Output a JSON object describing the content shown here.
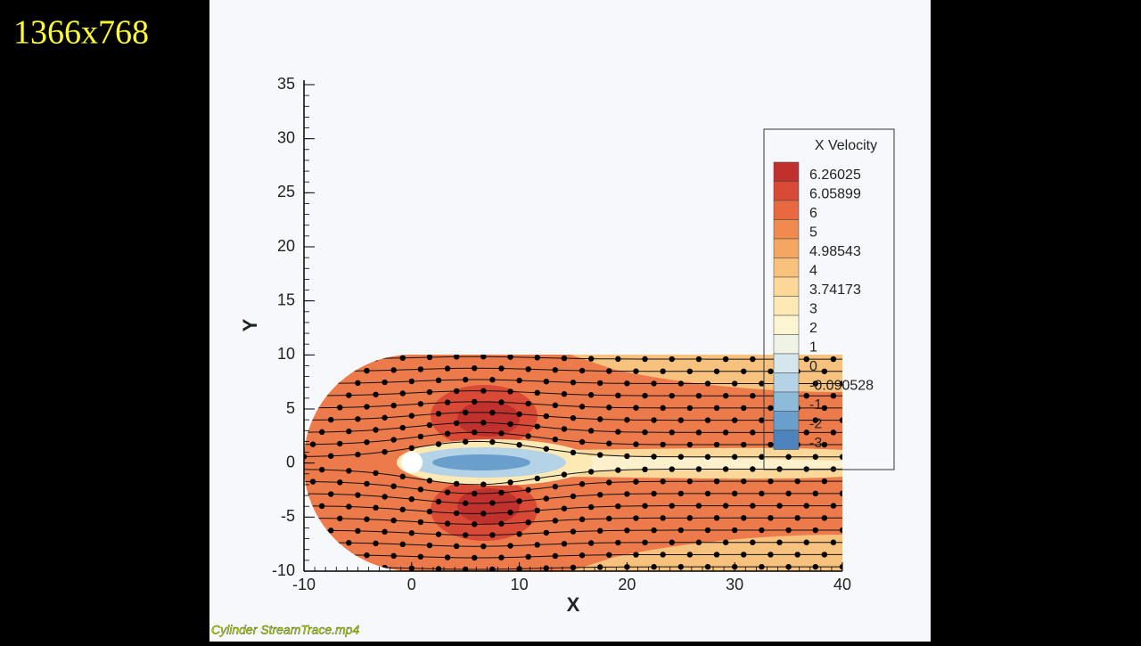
{
  "overlay_text": "1366x768",
  "video_caption": "Cylinder StreamTrace.mp4",
  "chart_data": {
    "type": "contour",
    "xlabel": "X",
    "ylabel": "Y",
    "xlim": [
      -10,
      40
    ],
    "xticks": [
      -10,
      0,
      10,
      20,
      30,
      40
    ],
    "ylim": [
      -10,
      35
    ],
    "yticks": [
      -10,
      -5,
      0,
      5,
      10,
      15,
      20,
      25,
      30,
      35
    ],
    "legend": {
      "title": "X Velocity",
      "position": "upper right",
      "levels": [
        6.26025,
        6.05899,
        6,
        5,
        4.98543,
        4,
        3.74173,
        3,
        2,
        1,
        0,
        -0.090528,
        -1,
        -2,
        -3
      ],
      "colors": [
        "#c0302c",
        "#d84a35",
        "#e8693f",
        "#f08a4f",
        "#f5a662",
        "#f9c27c",
        "#fbd897",
        "#fde9b3",
        "#fdf5d2",
        "#eef3e6",
        "#d6e6ef",
        "#b5d3e7",
        "#8fbbdb",
        "#6a9fcc",
        "#4e84bd"
      ]
    }
  }
}
